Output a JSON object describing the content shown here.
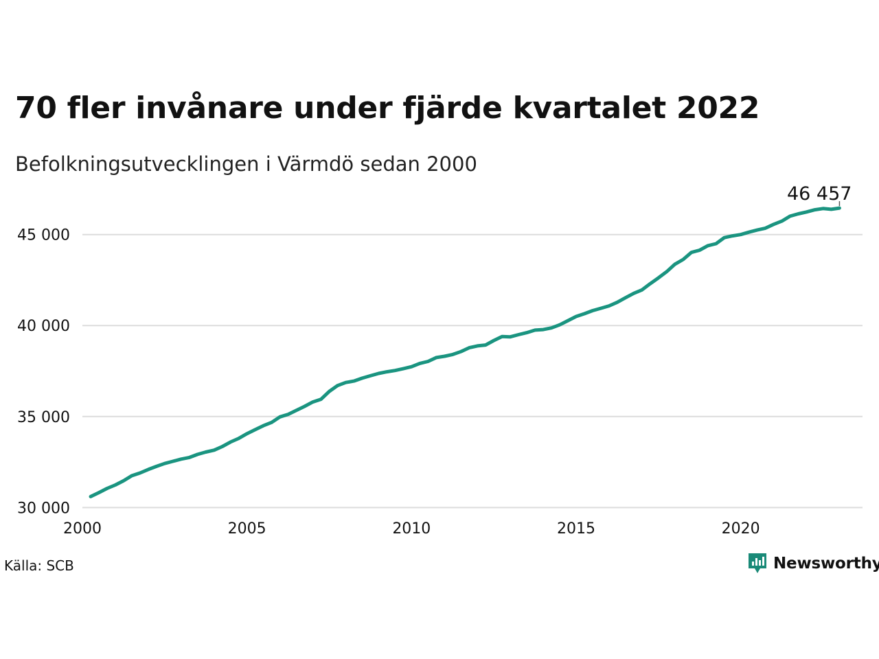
{
  "header": {
    "title": "70 fler invånare under fjärde kvartalet 2022",
    "subtitle": "Befolkningsutvecklingen i Värmdö sedan 2000"
  },
  "footer": {
    "source": "Källa: SCB",
    "brand": "Newsworthy",
    "brand_icon": "newsworthy-logo-icon"
  },
  "colors": {
    "line": "#1a9480",
    "grid": "#dcdcdc",
    "brand": "#1a8a78"
  },
  "chart_data": {
    "type": "line",
    "title": "70 fler invånare under fjärde kvartalet 2022",
    "subtitle": "Befolkningsutvecklingen i Värmdö sedan 2000",
    "xlabel": "",
    "ylabel": "",
    "xlim": [
      2000.0,
      2023.7
    ],
    "ylim": [
      29900,
      46950
    ],
    "grid": true,
    "legend": "none",
    "x_ticks": [
      2000,
      2005,
      2010,
      2015,
      2020
    ],
    "x_tick_labels": [
      "2000",
      "2005",
      "2010",
      "2015",
      "2020"
    ],
    "y_ticks": [
      30000,
      35000,
      40000,
      45000
    ],
    "y_tick_labels": [
      "30 000",
      "35 000",
      "40 000",
      "45 000"
    ],
    "end_label": "46 457",
    "series": [
      {
        "x": [
          2000.25,
          2000.5,
          2000.75,
          2001.0,
          2001.25,
          2001.5,
          2001.75,
          2002.0,
          2002.25,
          2002.5,
          2002.75,
          2003.0,
          2003.25,
          2003.5,
          2003.75,
          2004.0,
          2004.25,
          2004.5,
          2004.75,
          2005.0,
          2005.25,
          2005.5,
          2005.75,
          2006.0,
          2006.25,
          2006.5,
          2006.75,
          2007.0,
          2007.25,
          2007.5,
          2007.75,
          2008.0,
          2008.25,
          2008.5,
          2008.75,
          2009.0,
          2009.25,
          2009.5,
          2009.75,
          2010.0,
          2010.25,
          2010.5,
          2010.75,
          2011.0,
          2011.25,
          2011.5,
          2011.75,
          2012.0,
          2012.25,
          2012.5,
          2012.75,
          2013.0,
          2013.25,
          2013.5,
          2013.75,
          2014.0,
          2014.25,
          2014.5,
          2014.75,
          2015.0,
          2015.25,
          2015.5,
          2015.75,
          2016.0,
          2016.25,
          2016.5,
          2016.75,
          2017.0,
          2017.25,
          2017.5,
          2017.75,
          2018.0,
          2018.25,
          2018.5,
          2018.75,
          2019.0,
          2019.25,
          2019.5,
          2019.75,
          2020.0,
          2020.25,
          2020.5,
          2020.75,
          2021.0,
          2021.25,
          2021.5,
          2021.75,
          2022.0,
          2022.25,
          2022.5,
          2022.75,
          2023.0
        ],
        "values": [
          30600,
          30820,
          31050,
          31240,
          31470,
          31750,
          31900,
          32090,
          32260,
          32420,
          32540,
          32660,
          32750,
          32920,
          33050,
          33150,
          33350,
          33600,
          33800,
          34060,
          34280,
          34500,
          34680,
          34980,
          35120,
          35340,
          35560,
          35800,
          35950,
          36380,
          36700,
          36870,
          36950,
          37110,
          37240,
          37370,
          37460,
          37530,
          37630,
          37740,
          37920,
          38030,
          38240,
          38310,
          38410,
          38570,
          38780,
          38880,
          38930,
          39180,
          39400,
          39380,
          39500,
          39610,
          39750,
          39780,
          39870,
          40040,
          40270,
          40500,
          40650,
          40820,
          40950,
          41080,
          41280,
          41530,
          41770,
          41960,
          42300,
          42620,
          42960,
          43370,
          43630,
          44020,
          44140,
          44390,
          44500,
          44830,
          44930,
          45000,
          45130,
          45250,
          45350,
          45560,
          45740,
          46010,
          46140,
          46240,
          46360,
          46430,
          46387,
          46457
        ]
      }
    ]
  }
}
